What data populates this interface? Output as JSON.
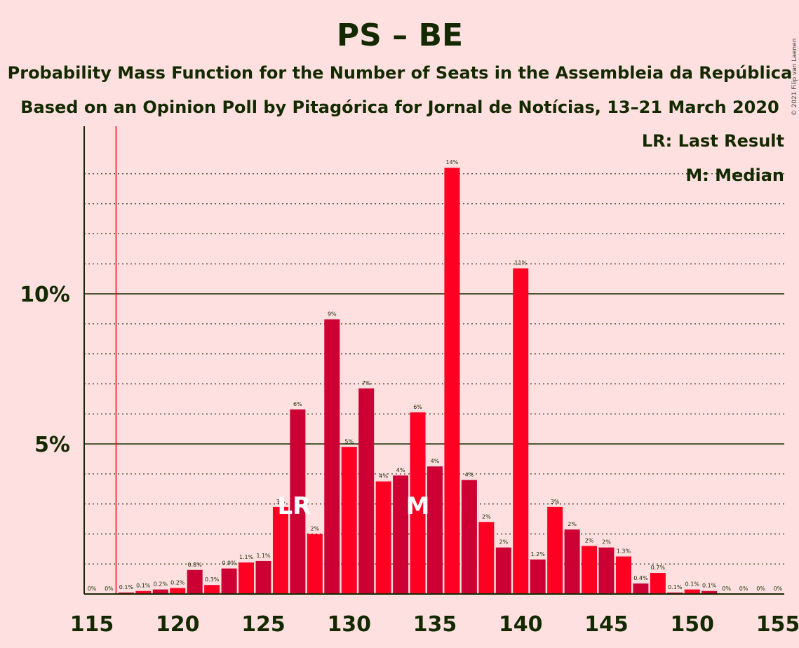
{
  "title": "PS – BE",
  "subtitle1": "Probability Mass Function for the Number of Seats in the Assembleia da República",
  "subtitle2": "Based on an Opinion Poll by Pitagórica for Jornal de Notícias, 13–21 March 2020",
  "copyright": "© 2021 Filip van Laenen",
  "legend": {
    "lr": "LR: Last Result",
    "m": "M: Median"
  },
  "markers": {
    "lr_label": "LR",
    "lr_seat": 127,
    "m_label": "M",
    "m_seat": 134,
    "last_result_line_seat": 116
  },
  "colors": {
    "bar_red": "#ff0022",
    "bar_crimson": "#cc0033",
    "last_result_line": "#ff0000",
    "text": "#132a00",
    "background": "#ffe0e0"
  },
  "chart_data": {
    "type": "bar",
    "xlabel": "",
    "ylabel": "",
    "x": [
      115,
      116,
      117,
      118,
      119,
      120,
      121,
      122,
      123,
      124,
      125,
      126,
      127,
      128,
      129,
      130,
      131,
      132,
      133,
      134,
      135,
      136,
      137,
      138,
      139,
      140,
      141,
      142,
      143,
      144,
      145,
      146,
      147,
      148,
      149,
      150,
      151,
      152,
      153,
      154,
      155
    ],
    "values": [
      0,
      0,
      0.05,
      0.1,
      0.15,
      0.2,
      0.8,
      0.3,
      0.85,
      1.05,
      1.1,
      2.9,
      6.15,
      2.0,
      9.15,
      4.9,
      6.85,
      3.75,
      3.95,
      6.05,
      4.25,
      14.2,
      3.8,
      2.4,
      1.55,
      10.85,
      1.15,
      2.9,
      2.15,
      1.6,
      1.55,
      1.25,
      0.35,
      0.7,
      0.05,
      0.15,
      0.1,
      0,
      0,
      0,
      0
    ],
    "labels": [
      "0%",
      "0%",
      "0.1%",
      "0.1%",
      "0.2%",
      "0.2%",
      "0.8%",
      "0.3%",
      "0.9%",
      "1.1%",
      "1.1%",
      "3%",
      "6%",
      "2%",
      "9%",
      "5%",
      "7%",
      "4%",
      "4%",
      "6%",
      "4%",
      "14%",
      "4%",
      "2%",
      "2%",
      "11%",
      "1.2%",
      "3%",
      "2%",
      "2%",
      "2%",
      "1.3%",
      "0.4%",
      "0.7%",
      "0.1%",
      "0.1%",
      "0.1%",
      "0%",
      "0%",
      "0%",
      "0%"
    ],
    "xticks": [
      115,
      120,
      125,
      130,
      135,
      140,
      145,
      150,
      155
    ],
    "xtick_labels": [
      "115",
      "120",
      "125",
      "130",
      "135",
      "140",
      "145",
      "150",
      "155"
    ],
    "yticks": [
      5,
      10
    ],
    "ytick_labels": [
      "5%",
      "10%"
    ],
    "ylim": [
      0,
      15.5
    ],
    "xlim": [
      115,
      155
    ],
    "grid": "dotted every 1%, solid at 5% and 10%",
    "legend_position": "top-right"
  }
}
